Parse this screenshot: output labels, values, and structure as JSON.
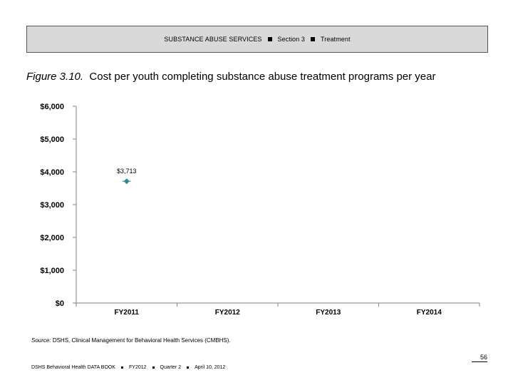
{
  "header": {
    "section_name": "SUBSTANCE ABUSE SERVICES",
    "section": "Section 3",
    "subsection": "Treatment"
  },
  "figure": {
    "number": "Figure 3.10.",
    "title": "Cost per youth completing substance abuse treatment programs per year"
  },
  "chart_data": {
    "type": "scatter",
    "categories": [
      "FY2011",
      "FY2012",
      "FY2013",
      "FY2014"
    ],
    "series": [
      {
        "values": [
          3713,
          null,
          null,
          null
        ],
        "data_labels": [
          "$3,713",
          "",
          "",
          ""
        ],
        "color": "#2e8b8b"
      }
    ],
    "y_ticks": [
      "$0",
      "$1,000",
      "$2,000",
      "$3,000",
      "$4,000",
      "$5,000",
      "$6,000"
    ],
    "ylim": [
      0,
      6000
    ],
    "grid": false,
    "legend": "none"
  },
  "source": {
    "label": "Source:",
    "text": "DSHS, Clinical Management for Behavioral Health Services (CMBHS)."
  },
  "page_number": "56",
  "footer": {
    "book": "DSHS Behavioral Health DATA BOOK",
    "year": "FY2012",
    "quarter": "Quarter 2",
    "date": "April 10, 2012"
  }
}
